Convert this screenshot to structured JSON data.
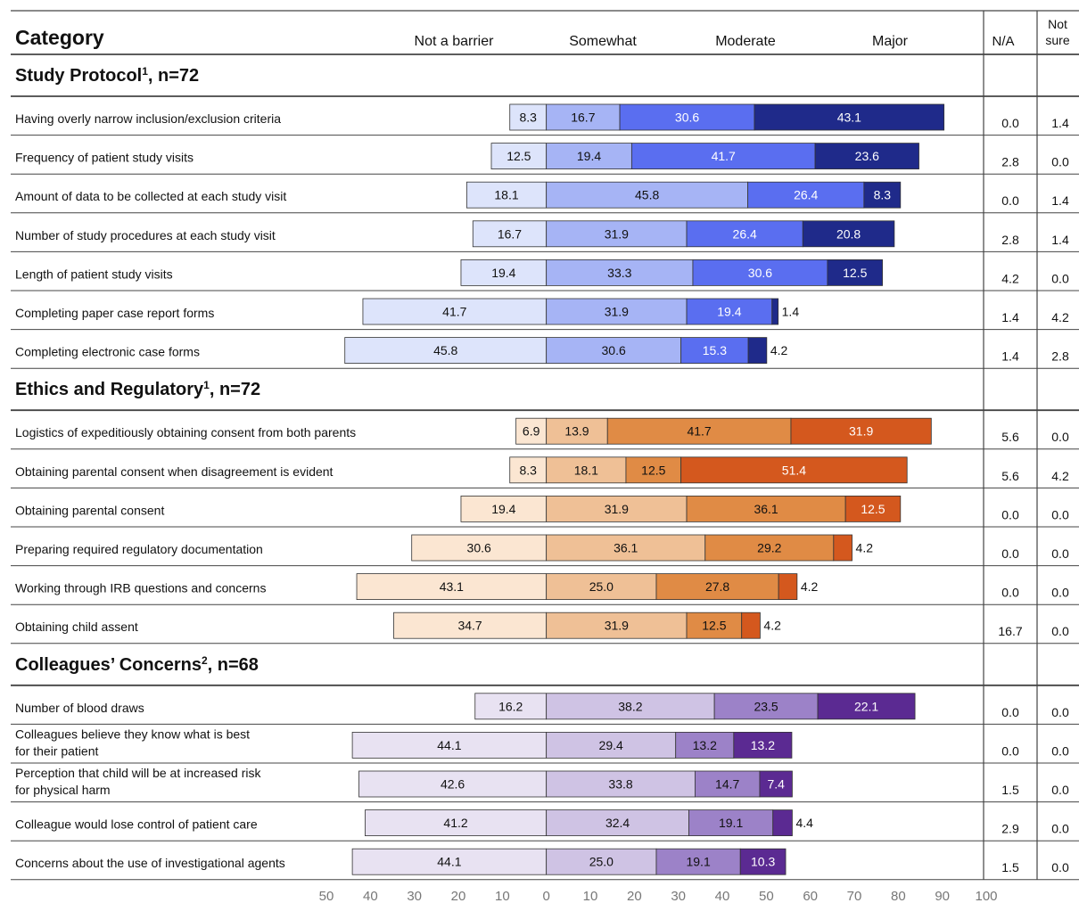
{
  "chart_data": {
    "type": "diverging_bar",
    "category_header": "Category",
    "series_names": [
      "Not a barrier",
      "Somewhat",
      "Moderate",
      "Major"
    ],
    "na_header": "N/A",
    "not_sure_header": [
      "Not",
      "sure"
    ],
    "xlim": [
      -50,
      100
    ],
    "xticks": [
      {
        "value": -50,
        "label": "50"
      },
      {
        "value": -40,
        "label": "40"
      },
      {
        "value": -30,
        "label": "30"
      },
      {
        "value": -20,
        "label": "20"
      },
      {
        "value": -10,
        "label": "10"
      },
      0,
      10,
      20,
      30,
      40,
      50,
      60,
      70,
      80,
      90,
      100
    ],
    "groups": [
      {
        "title": "Study Protocol",
        "footnote": "1",
        "suffix": ", n=72",
        "colors": [
          "#dde4fb",
          "#a6b4f5",
          "#5a6ef0",
          "#1f2a8a"
        ],
        "rows": [
          {
            "label": [
              "Having overly narrow inclusion/exclusion criteria"
            ],
            "values": [
              8.3,
              16.7,
              30.6,
              43.1
            ],
            "na": "0.0",
            "not_sure": "1.4"
          },
          {
            "label": [
              "Frequency of patient study visits"
            ],
            "values": [
              12.5,
              19.4,
              41.7,
              23.6
            ],
            "na": "2.8",
            "not_sure": "0.0"
          },
          {
            "label": [
              "Amount of data to be collected at each study visit"
            ],
            "values": [
              18.1,
              45.8,
              26.4,
              8.3
            ],
            "na": "0.0",
            "not_sure": "1.4"
          },
          {
            "label": [
              "Number of study procedures at each study visit"
            ],
            "values": [
              16.7,
              31.9,
              26.4,
              20.8
            ],
            "na": "2.8",
            "not_sure": "1.4"
          },
          {
            "label": [
              "Length of patient study visits"
            ],
            "values": [
              19.4,
              33.3,
              30.6,
              12.5
            ],
            "na": "4.2",
            "not_sure": "0.0"
          },
          {
            "label": [
              "Completing paper case report forms"
            ],
            "values": [
              41.7,
              31.9,
              19.4,
              1.4
            ],
            "na": "1.4",
            "not_sure": "4.2"
          },
          {
            "label": [
              "Completing electronic case forms"
            ],
            "values": [
              45.8,
              30.6,
              15.3,
              4.2
            ],
            "na": "1.4",
            "not_sure": "2.8"
          }
        ]
      },
      {
        "title": "Ethics and Regulatory",
        "footnote": "1",
        "suffix": ", n=72",
        "colors": [
          "#fbe6d2",
          "#efc096",
          "#e08b45",
          "#d4581e"
        ],
        "rows": [
          {
            "label": [
              "Logistics of expeditiously obtaining consent from both parents"
            ],
            "values": [
              6.9,
              13.9,
              41.7,
              31.9
            ],
            "na": "5.6",
            "not_sure": "0.0"
          },
          {
            "label": [
              "Obtaining parental consent when disagreement is evident"
            ],
            "values": [
              8.3,
              18.1,
              12.5,
              51.4
            ],
            "na": "5.6",
            "not_sure": "4.2"
          },
          {
            "label": [
              "Obtaining parental consent"
            ],
            "values": [
              19.4,
              31.9,
              36.1,
              12.5
            ],
            "na": "0.0",
            "not_sure": "0.0"
          },
          {
            "label": [
              "Preparing required regulatory documentation"
            ],
            "values": [
              30.6,
              36.1,
              29.2,
              4.2
            ],
            "na": "0.0",
            "not_sure": "0.0"
          },
          {
            "label": [
              "Working through IRB questions and concerns"
            ],
            "values": [
              43.1,
              25.0,
              27.8,
              4.2
            ],
            "value_labels": [
              "43.1",
              "25.0",
              "27.8",
              "4.2"
            ],
            "na": "0.0",
            "not_sure": "0.0"
          },
          {
            "label": [
              "Obtaining child assent"
            ],
            "values": [
              34.7,
              31.9,
              12.5,
              4.2
            ],
            "na": "16.7",
            "not_sure": "0.0"
          }
        ]
      },
      {
        "title": "Colleagues’ Concerns",
        "footnote": "2",
        "suffix": ", n=68",
        "colors": [
          "#e8e2f2",
          "#cfc3e4",
          "#9c82c8",
          "#5b2a92"
        ],
        "rows": [
          {
            "label": [
              "Number of blood draws"
            ],
            "values": [
              16.2,
              38.2,
              23.5,
              22.1
            ],
            "na": "0.0",
            "not_sure": "0.0"
          },
          {
            "label": [
              "Colleagues believe they know what is best",
              "for their patient"
            ],
            "values": [
              44.1,
              29.4,
              13.2,
              13.2
            ],
            "na": "0.0",
            "not_sure": "0.0"
          },
          {
            "label": [
              "Perception that child will be at increased risk",
              "for physical harm"
            ],
            "values": [
              42.6,
              33.8,
              14.7,
              7.4
            ],
            "na": "1.5",
            "not_sure": "0.0"
          },
          {
            "label": [
              "Colleague would lose control of patient care"
            ],
            "values": [
              41.2,
              32.4,
              19.1,
              4.4
            ],
            "na": "2.9",
            "not_sure": "0.0"
          },
          {
            "label": [
              "Concerns about the use of investigational agents"
            ],
            "values": [
              44.1,
              25.0,
              19.1,
              10.3
            ],
            "value_labels": [
              "44.1",
              "25.0",
              "19.1",
              "10.3"
            ],
            "na": "1.5",
            "not_sure": "0.0"
          }
        ]
      }
    ]
  }
}
